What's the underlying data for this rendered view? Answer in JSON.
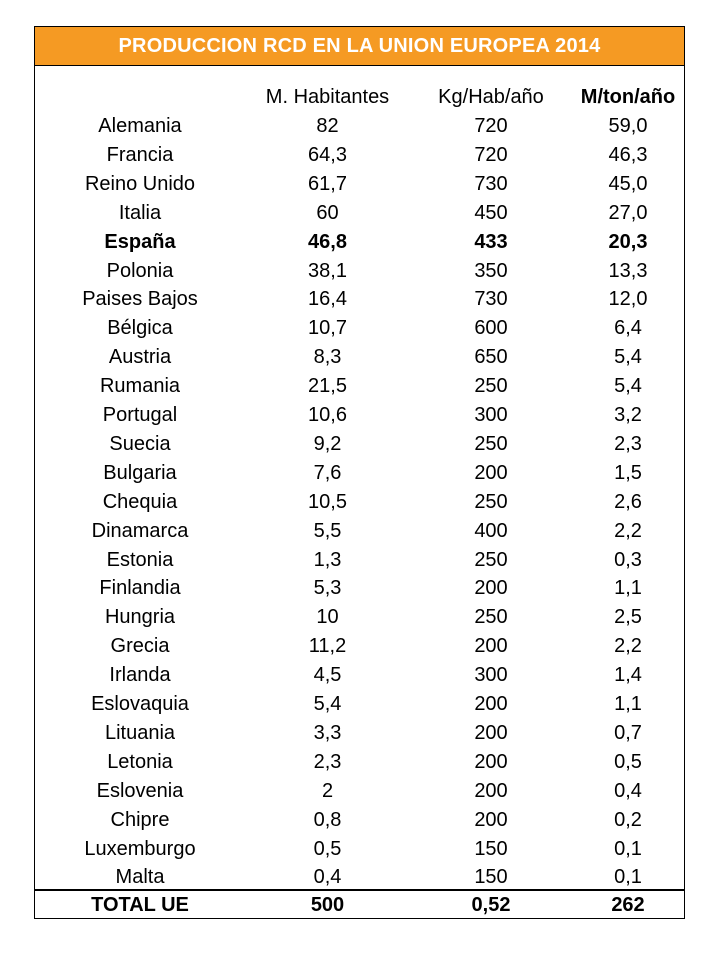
{
  "title": "PRODUCCION RCD EN LA UNION EUROPEA 2014",
  "colors": {
    "title_background": "#f59a23",
    "title_text": "#ffffff"
  },
  "columns": [
    "",
    "M. Habitantes",
    "Kg/Hab/año",
    "M/ton/año"
  ],
  "rows": [
    {
      "country": "Alemania",
      "habitantes": "82",
      "kg_hab": "720",
      "mton": "59,0",
      "bold": false
    },
    {
      "country": "Francia",
      "habitantes": "64,3",
      "kg_hab": "720",
      "mton": "46,3",
      "bold": false
    },
    {
      "country": "Reino Unido",
      "habitantes": "61,7",
      "kg_hab": "730",
      "mton": "45,0",
      "bold": false
    },
    {
      "country": "Italia",
      "habitantes": "60",
      "kg_hab": "450",
      "mton": "27,0",
      "bold": false
    },
    {
      "country": "España",
      "habitantes": "46,8",
      "kg_hab": "433",
      "mton": "20,3",
      "bold": true
    },
    {
      "country": "Polonia",
      "habitantes": "38,1",
      "kg_hab": "350",
      "mton": "13,3",
      "bold": false
    },
    {
      "country": "Paises Bajos",
      "habitantes": "16,4",
      "kg_hab": "730",
      "mton": "12,0",
      "bold": false
    },
    {
      "country": "Bélgica",
      "habitantes": "10,7",
      "kg_hab": "600",
      "mton": "6,4",
      "bold": false
    },
    {
      "country": "Austria",
      "habitantes": "8,3",
      "kg_hab": "650",
      "mton": "5,4",
      "bold": false
    },
    {
      "country": "Rumania",
      "habitantes": "21,5",
      "kg_hab": "250",
      "mton": "5,4",
      "bold": false
    },
    {
      "country": "Portugal",
      "habitantes": "10,6",
      "kg_hab": "300",
      "mton": "3,2",
      "bold": false
    },
    {
      "country": "Suecia",
      "habitantes": "9,2",
      "kg_hab": "250",
      "mton": "2,3",
      "bold": false
    },
    {
      "country": "Bulgaria",
      "habitantes": "7,6",
      "kg_hab": "200",
      "mton": "1,5",
      "bold": false
    },
    {
      "country": "Chequia",
      "habitantes": "10,5",
      "kg_hab": "250",
      "mton": "2,6",
      "bold": false
    },
    {
      "country": "Dinamarca",
      "habitantes": "5,5",
      "kg_hab": "400",
      "mton": "2,2",
      "bold": false
    },
    {
      "country": "Estonia",
      "habitantes": "1,3",
      "kg_hab": "250",
      "mton": "0,3",
      "bold": false
    },
    {
      "country": "Finlandia",
      "habitantes": "5,3",
      "kg_hab": "200",
      "mton": "1,1",
      "bold": false
    },
    {
      "country": "Hungria",
      "habitantes": "10",
      "kg_hab": "250",
      "mton": "2,5",
      "bold": false
    },
    {
      "country": "Grecia",
      "habitantes": "11,2",
      "kg_hab": "200",
      "mton": "2,2",
      "bold": false
    },
    {
      "country": "Irlanda",
      "habitantes": "4,5",
      "kg_hab": "300",
      "mton": "1,4",
      "bold": false
    },
    {
      "country": "Eslovaquia",
      "habitantes": "5,4",
      "kg_hab": "200",
      "mton": "1,1",
      "bold": false
    },
    {
      "country": "Lituania",
      "habitantes": "3,3",
      "kg_hab": "200",
      "mton": "0,7",
      "bold": false
    },
    {
      "country": "Letonia",
      "habitantes": "2,3",
      "kg_hab": "200",
      "mton": "0,5",
      "bold": false
    },
    {
      "country": "Eslovenia",
      "habitantes": "2",
      "kg_hab": "200",
      "mton": "0,4",
      "bold": false
    },
    {
      "country": "Chipre",
      "habitantes": "0,8",
      "kg_hab": "200",
      "mton": "0,2",
      "bold": false
    },
    {
      "country": "Luxemburgo",
      "habitantes": "0,5",
      "kg_hab": "150",
      "mton": "0,1",
      "bold": false
    },
    {
      "country": "Malta",
      "habitantes": "0,4",
      "kg_hab": "150",
      "mton": "0,1",
      "bold": false
    }
  ],
  "total": {
    "label": "TOTAL UE",
    "habitantes": "500",
    "kg_hab": "0,52",
    "mton": "262"
  }
}
